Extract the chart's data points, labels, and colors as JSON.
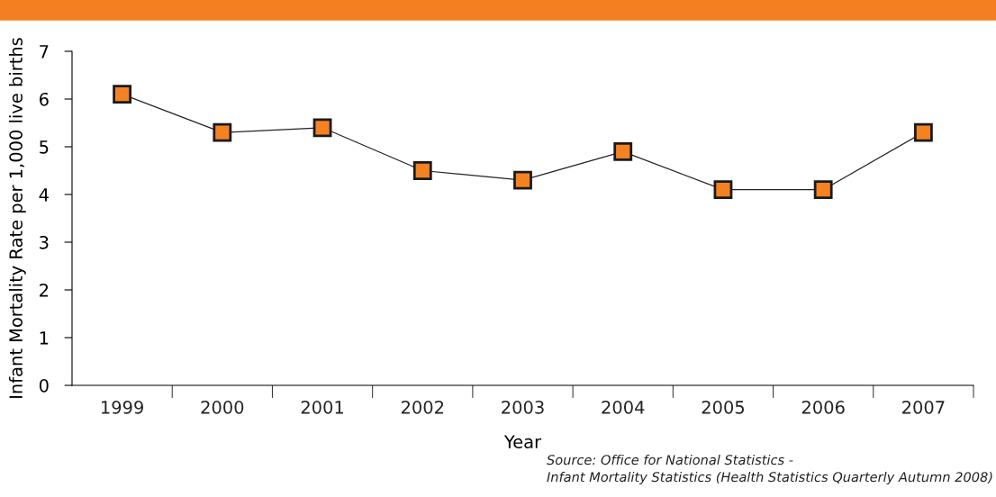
{
  "chart_data": {
    "type": "line",
    "categories": [
      "1999",
      "2000",
      "2001",
      "2002",
      "2003",
      "2004",
      "2005",
      "2006",
      "2007"
    ],
    "series": [
      {
        "color": "#f58220",
        "values": [
          6.1,
          5.3,
          5.4,
          4.5,
          4.3,
          4.9,
          4.1,
          4.1,
          5.3
        ]
      }
    ],
    "xlabel": "Year",
    "ylabel": "Infant Mortality Rate per 1,000 live births",
    "ylim": [
      0,
      7
    ],
    "yticks": [
      0,
      1,
      2,
      3,
      4,
      5,
      6,
      7
    ],
    "marker": "square",
    "line_style": "solid",
    "grid": false,
    "legend": false,
    "annotations": [
      "Source: Office for National Statistics -",
      "Infant Mortality Statistics (Health Statistics Quarterly Autumn 2008)"
    ]
  }
}
